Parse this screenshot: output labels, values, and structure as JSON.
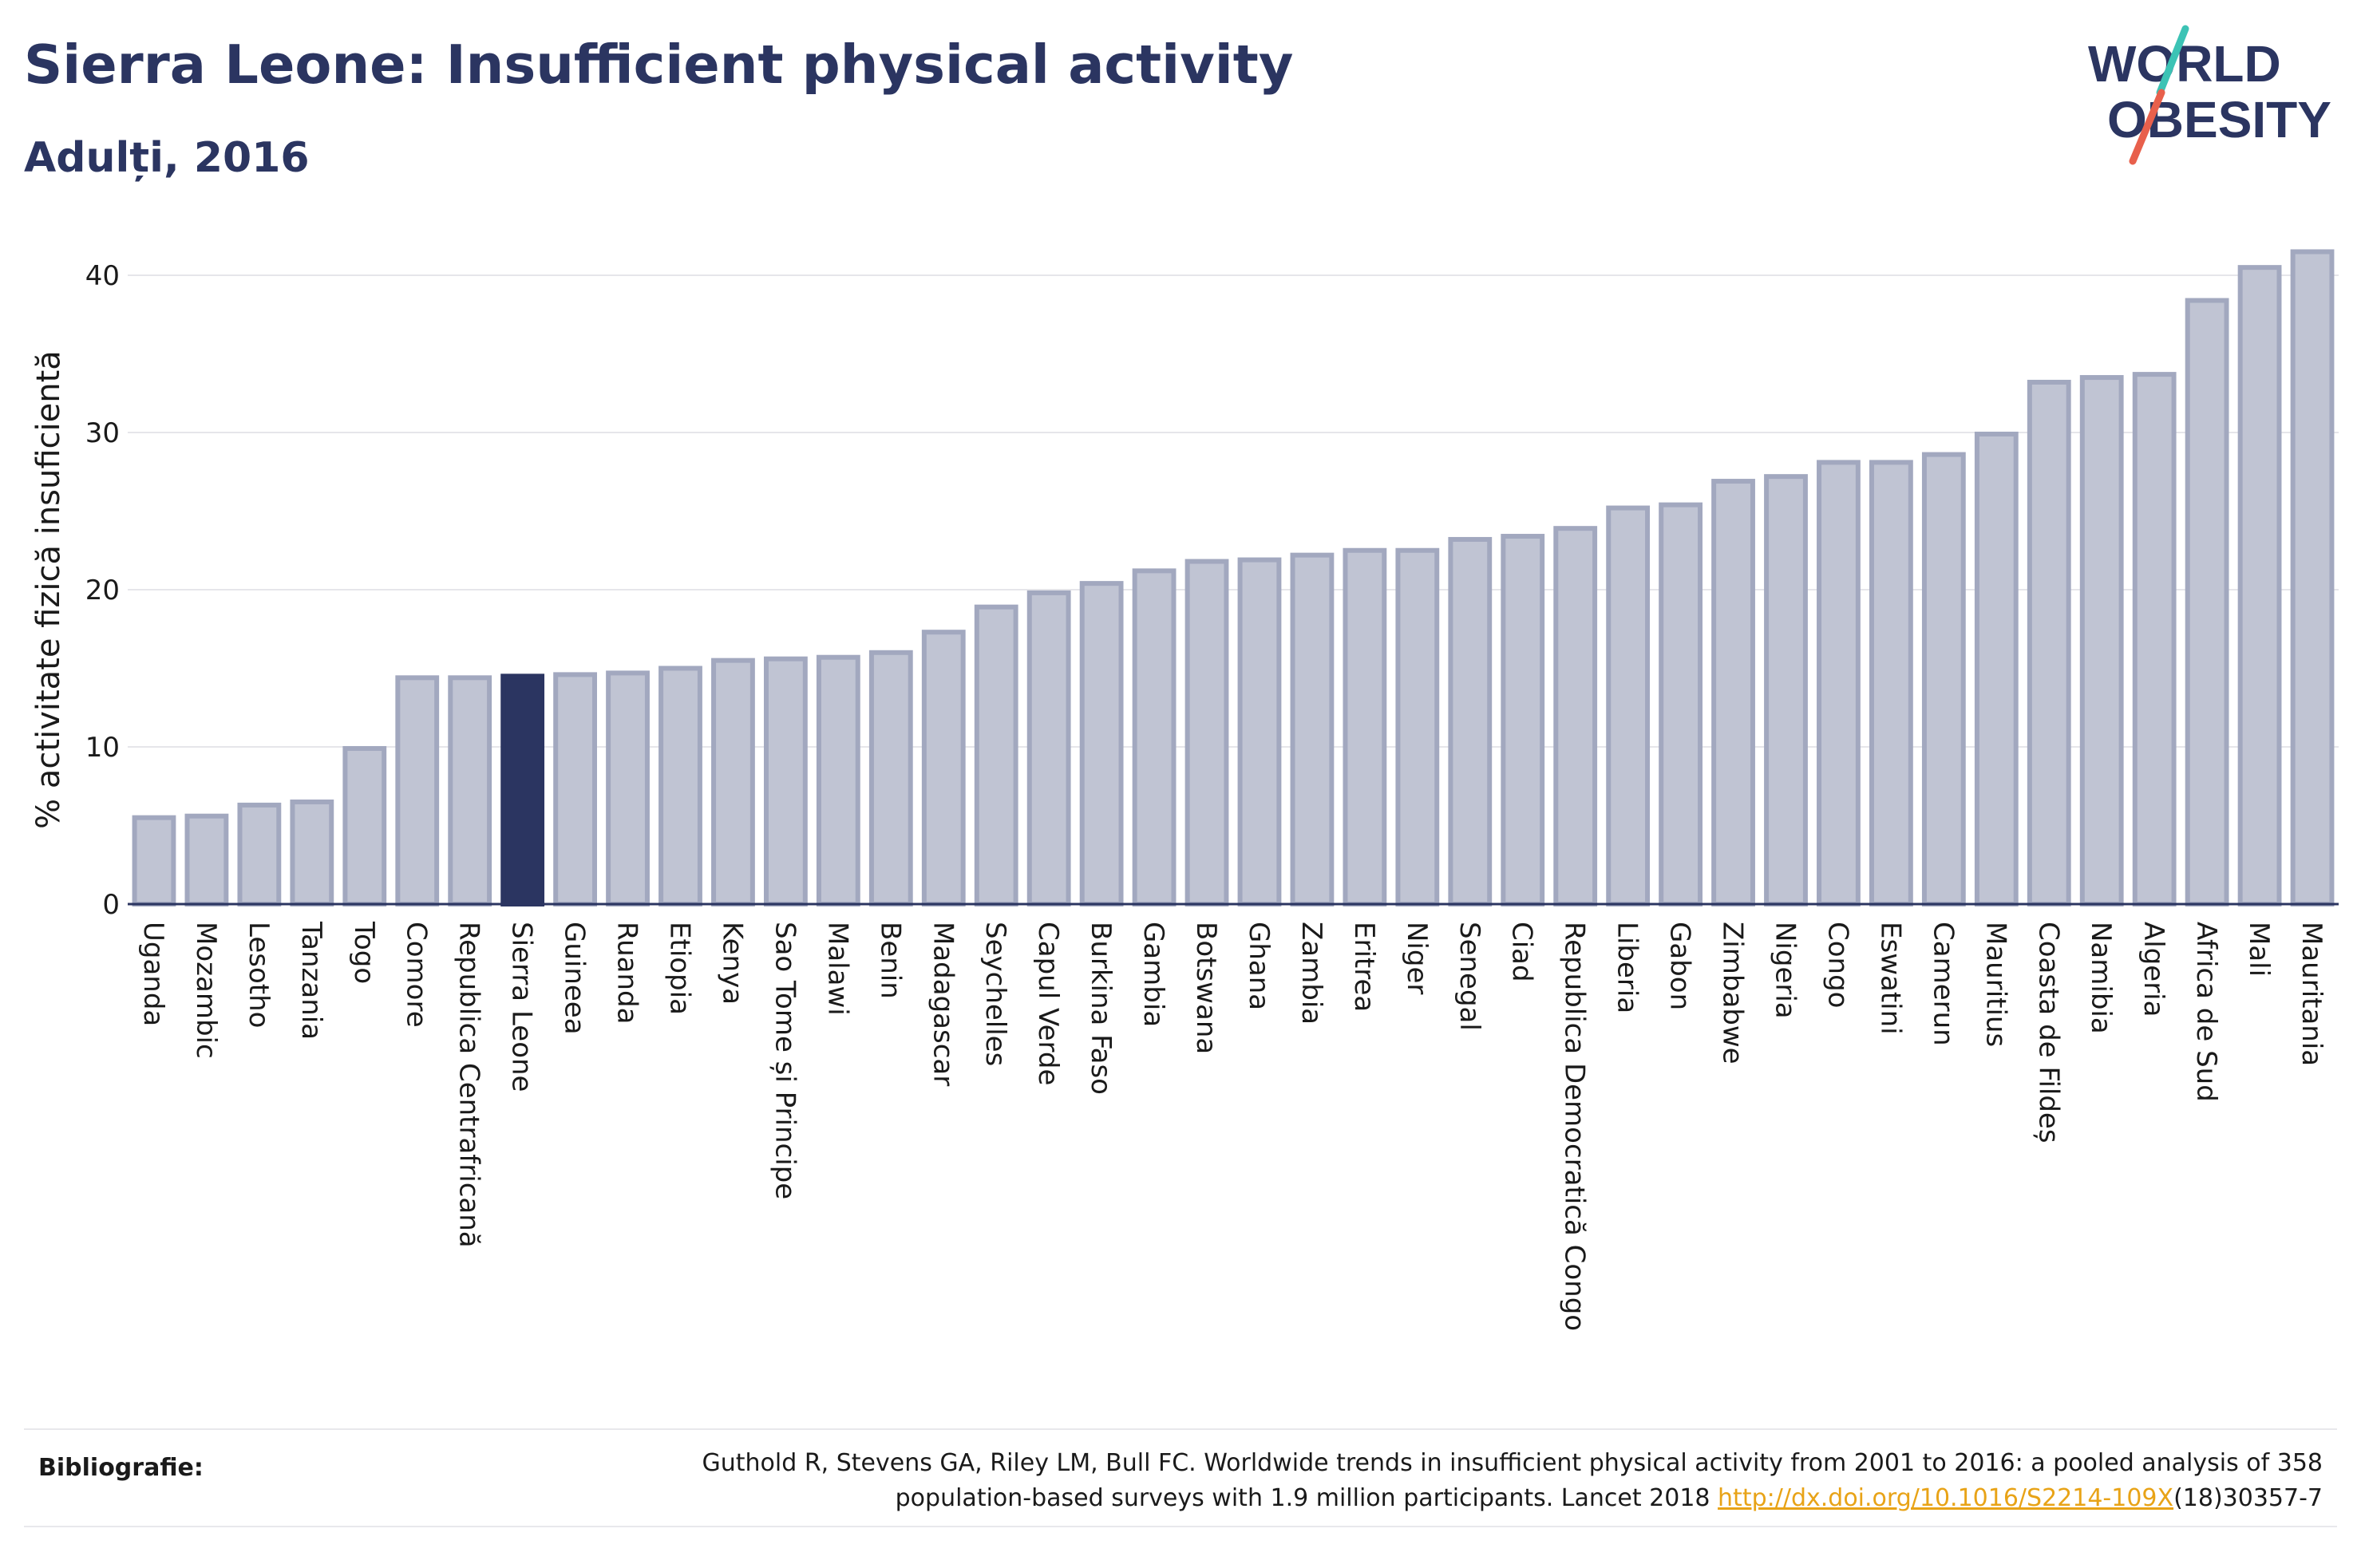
{
  "header": {
    "title": "Sierra Leone: Insufficient physical activity",
    "subtitle": "Adulți, 2016"
  },
  "logo": {
    "line1": "WORLD",
    "line2": "OBESITY",
    "colors": {
      "text": "#2b3561",
      "slash_teal": "#3cc3b5",
      "slash_red": "#e8604c"
    }
  },
  "chart_data": {
    "type": "bar",
    "title": "Sierra Leone: Insufficient physical activity",
    "subtitle": "Adulți, 2016",
    "ylabel": "% activitate fizică insuficientă",
    "xlabel": "",
    "ylim": [
      0,
      42
    ],
    "yticks": [
      0,
      10,
      20,
      30,
      40
    ],
    "grid": true,
    "highlight": "Sierra Leone",
    "colors": {
      "bar": "#c0c4d3",
      "bar_edge": "#a2a8bf",
      "highlight": "#2b3561"
    },
    "categories": [
      "Uganda",
      "Mozambic",
      "Lesotho",
      "Tanzania",
      "Togo",
      "Comore",
      "Republica Centrafricană",
      "Sierra Leone",
      "Guineea",
      "Ruanda",
      "Etiopia",
      "Kenya",
      "Sao Tome și Principe",
      "Malawi",
      "Benin",
      "Madagascar",
      "Seychelles",
      "Capul Verde",
      "Burkina Faso",
      "Gambia",
      "Botswana",
      "Ghana",
      "Zambia",
      "Eritrea",
      "Niger",
      "Senegal",
      "Ciad",
      "Republica Democratică Congo",
      "Liberia",
      "Gabon",
      "Zimbabwe",
      "Nigeria",
      "Congo",
      "Eswatini",
      "Camerun",
      "Mauritius",
      "Coasta de Fildeș",
      "Namibia",
      "Algeria",
      "Africa de Sud",
      "Mali",
      "Mauritania"
    ],
    "values": [
      5.5,
      5.6,
      6.3,
      6.5,
      9.9,
      14.4,
      14.4,
      14.5,
      14.6,
      14.7,
      15.0,
      15.5,
      15.6,
      15.7,
      16.0,
      17.3,
      18.9,
      19.8,
      20.4,
      21.2,
      21.8,
      21.9,
      22.2,
      22.5,
      22.5,
      23.2,
      23.4,
      23.9,
      25.2,
      25.4,
      26.9,
      27.2,
      28.1,
      28.1,
      28.6,
      29.9,
      33.2,
      33.5,
      33.7,
      38.4,
      40.5,
      41.5
    ]
  },
  "footer": {
    "label": "Bibliografie:",
    "text_line1": "Guthold R, Stevens GA, Riley LM, Bull FC. Worldwide trends in insufficient physical activity from 2001 to 2016: a pooled analysis of 358",
    "text_line2_prefix": "population-based surveys with 1.9 million participants. Lancet 2018 ",
    "link_text": "http://dx.doi.org/10.1016/S2214-109X",
    "text_line2_suffix": "(18)30357-7"
  }
}
